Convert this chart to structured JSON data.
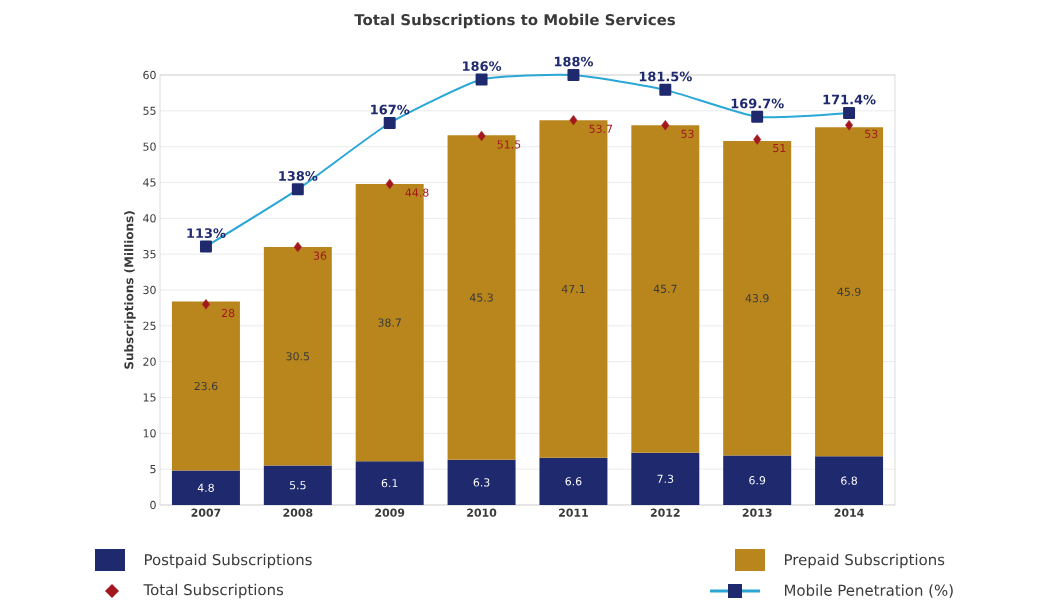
{
  "chart_data": {
    "type": "bar",
    "title": "Total Subscriptions to Mobile Services",
    "ylabel": "Subscriptions (Millions)",
    "categories": [
      "2007",
      "2008",
      "2009",
      "2010",
      "2011",
      "2012",
      "2013",
      "2014"
    ],
    "stacked": true,
    "ylim": [
      0,
      60
    ],
    "yticks": [
      0,
      5,
      10,
      15,
      20,
      25,
      30,
      35,
      40,
      45,
      50,
      55,
      60
    ],
    "y2lim": [
      0,
      188
    ],
    "grid": "y",
    "legend": "bottom",
    "series": [
      {
        "name": "Postpaid Subscriptions",
        "color": "#1f2a6e",
        "values": [
          4.8,
          5.5,
          6.1,
          6.3,
          6.6,
          7.3,
          6.9,
          6.8
        ],
        "value_labels": [
          "4.8",
          "5.5",
          "6.1",
          "6.3",
          "6.6",
          "7.3",
          "6.9",
          "6.8"
        ]
      },
      {
        "name": "Prepaid Subscriptions",
        "color": "#b8861c",
        "values": [
          23.6,
          30.5,
          38.7,
          45.3,
          47.1,
          45.7,
          43.9,
          45.9
        ],
        "value_labels": [
          "23.6",
          "30.5",
          "38.7",
          "45.3",
          "47.1",
          "45.7",
          "43.9",
          "45.9"
        ]
      },
      {
        "name": "Total Subscriptions",
        "type": "scatter",
        "marker": "diamond",
        "color": "#a3181e",
        "values": [
          28,
          36,
          44.8,
          51.5,
          53.7,
          53,
          51,
          53
        ],
        "value_labels": [
          "28",
          "36",
          "44.8",
          "51.5",
          "53.7",
          "53",
          "51",
          "53"
        ]
      },
      {
        "name": "Mobile Penetration (%)",
        "type": "line",
        "axis": "y2",
        "marker": "square",
        "color": "#2aa7d6",
        "values": [
          113,
          138,
          167,
          186,
          188,
          181.5,
          169.7,
          171.4
        ],
        "value_labels": [
          "113%",
          "138%",
          "167%",
          "186%",
          "188%",
          "181.5%",
          "169.7%",
          "171.4%"
        ]
      }
    ]
  }
}
